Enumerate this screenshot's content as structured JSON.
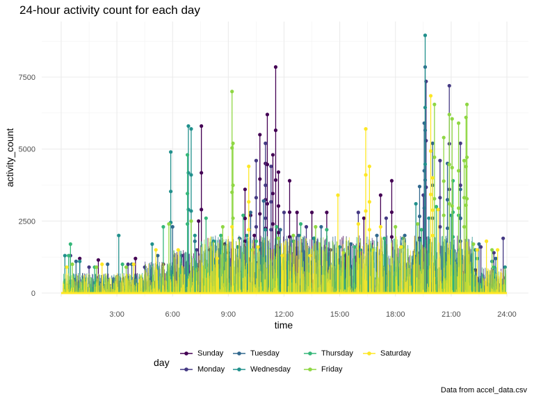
{
  "chart_data": {
    "type": "line",
    "title": "24-hour activity count for each day",
    "xlabel": "time",
    "ylabel": "activity_count",
    "caption": "Data from accel_data.csv",
    "xlim": [
      0,
      24
    ],
    "ylim": [
      0,
      9000
    ],
    "x_ticks": [
      {
        "value": 3,
        "label": "3:00"
      },
      {
        "value": 6,
        "label": "6:00"
      },
      {
        "value": 9,
        "label": "9:00"
      },
      {
        "value": 12,
        "label": "12:00"
      },
      {
        "value": 15,
        "label": "15:00"
      },
      {
        "value": 18,
        "label": "18:00"
      },
      {
        "value": 21,
        "label": "21:00"
      },
      {
        "value": 24,
        "label": "24:00"
      }
    ],
    "y_ticks": [
      {
        "value": 0,
        "label": "0"
      },
      {
        "value": 2500,
        "label": "2500"
      },
      {
        "value": 5000,
        "label": "5000"
      },
      {
        "value": 7500,
        "label": "7500"
      }
    ],
    "grid": true,
    "legend": {
      "title": "day",
      "position": "bottom",
      "entries": [
        "Sunday",
        "Monday",
        "Tuesday",
        "Wednesday",
        "Thursday",
        "Friday",
        "Saturday"
      ]
    },
    "series": [
      {
        "name": "Sunday",
        "color": "#440154",
        "peaks": [
          [
            1.0,
            1200
          ],
          [
            2.0,
            1150
          ],
          [
            4.0,
            1200
          ],
          [
            5.5,
            1000
          ],
          [
            7.4,
            2500
          ],
          [
            7.55,
            5800
          ],
          [
            8.0,
            1500
          ],
          [
            8.8,
            1700
          ],
          [
            9.9,
            3600
          ],
          [
            10.2,
            2700
          ],
          [
            10.4,
            2000
          ],
          [
            10.7,
            5500
          ],
          [
            11.0,
            4500
          ],
          [
            11.1,
            6200
          ],
          [
            11.4,
            4800
          ],
          [
            11.55,
            7850
          ],
          [
            11.7,
            4200
          ],
          [
            12.3,
            3900
          ],
          [
            12.7,
            2800
          ],
          [
            13.5,
            2800
          ],
          [
            14.3,
            2800
          ],
          [
            15.3,
            1300
          ],
          [
            16.3,
            2600
          ],
          [
            17.2,
            3400
          ],
          [
            17.8,
            3900
          ],
          [
            19.3,
            1900
          ],
          [
            22.3,
            800
          ]
        ]
      },
      {
        "name": "Monday",
        "color": "#443983",
        "peaks": [
          [
            0.5,
            1300
          ],
          [
            1.5,
            900
          ],
          [
            3.6,
            1000
          ],
          [
            4.5,
            900
          ],
          [
            6.5,
            1300
          ],
          [
            7.3,
            1500
          ],
          [
            9.0,
            1400
          ],
          [
            10.5,
            4600
          ],
          [
            11.0,
            5200
          ],
          [
            11.3,
            4400
          ],
          [
            12.0,
            2800
          ],
          [
            13.2,
            2300
          ],
          [
            14.5,
            1500
          ],
          [
            16.0,
            2800
          ],
          [
            16.6,
            1500
          ],
          [
            17.5,
            2600
          ],
          [
            19.5,
            3400
          ],
          [
            19.65,
            7350
          ],
          [
            20.0,
            2600
          ],
          [
            20.4,
            4600
          ],
          [
            20.9,
            7200
          ],
          [
            21.5,
            5200
          ],
          [
            22.6,
            1600
          ],
          [
            23.3,
            1400
          ],
          [
            23.8,
            1900
          ]
        ]
      },
      {
        "name": "Tuesday",
        "color": "#31688e",
        "peaks": [
          [
            0.8,
            1100
          ],
          [
            2.5,
            1000
          ],
          [
            3.8,
            1000
          ],
          [
            5.2,
            1300
          ],
          [
            6.0,
            2300
          ],
          [
            7.2,
            1800
          ],
          [
            8.5,
            1500
          ],
          [
            9.6,
            1900
          ],
          [
            10.2,
            2800
          ],
          [
            10.9,
            3200
          ],
          [
            11.8,
            2200
          ],
          [
            12.8,
            2000
          ],
          [
            14.0,
            2300
          ],
          [
            15.6,
            1700
          ],
          [
            17.0,
            2000
          ],
          [
            18.5,
            2000
          ],
          [
            19.3,
            3700
          ],
          [
            19.55,
            5900
          ],
          [
            19.6,
            7850
          ],
          [
            20.0,
            5200
          ],
          [
            20.8,
            4500
          ],
          [
            21.5,
            3600
          ],
          [
            22.5,
            1700
          ],
          [
            23.4,
            1200
          ]
        ]
      },
      {
        "name": "Wednesday",
        "color": "#21908c",
        "peaks": [
          [
            0.2,
            1300
          ],
          [
            1.0,
            1100
          ],
          [
            3.1,
            2000
          ],
          [
            4.9,
            1700
          ],
          [
            5.9,
            4900
          ],
          [
            6.85,
            5800
          ],
          [
            7.0,
            5700
          ],
          [
            7.2,
            2000
          ],
          [
            8.2,
            1800
          ],
          [
            9.5,
            1600
          ],
          [
            10.0,
            2000
          ],
          [
            11.0,
            2200
          ],
          [
            12.5,
            1800
          ],
          [
            13.6,
            1900
          ],
          [
            15.0,
            1600
          ],
          [
            16.1,
            1500
          ],
          [
            18.4,
            1900
          ],
          [
            19.1,
            3100
          ],
          [
            19.6,
            8950
          ],
          [
            19.8,
            2600
          ],
          [
            21.0,
            2700
          ],
          [
            22.3,
            1500
          ],
          [
            23.2,
            1100
          ],
          [
            23.9,
            900
          ]
        ]
      },
      {
        "name": "Thursday",
        "color": "#35b779",
        "peaks": [
          [
            0.4,
            1300
          ],
          [
            0.5,
            1700
          ],
          [
            1.8,
            900
          ],
          [
            3.3,
            1000
          ],
          [
            5.5,
            2300
          ],
          [
            6.8,
            4800
          ],
          [
            7.8,
            2600
          ],
          [
            8.6,
            2000
          ],
          [
            9.8,
            2700
          ],
          [
            10.5,
            1800
          ],
          [
            11.6,
            2300
          ],
          [
            12.9,
            2400
          ],
          [
            14.3,
            2200
          ],
          [
            15.8,
            1600
          ],
          [
            17.4,
            1900
          ],
          [
            18.4,
            1600
          ],
          [
            19.4,
            2200
          ],
          [
            20.2,
            3000
          ],
          [
            21.1,
            3900
          ],
          [
            21.4,
            2700
          ],
          [
            22.4,
            1200
          ],
          [
            23.3,
            900
          ]
        ]
      },
      {
        "name": "Friday",
        "color": "#8fd744",
        "peaks": [
          [
            0.6,
            1000
          ],
          [
            1.9,
            900
          ],
          [
            3.5,
            900
          ],
          [
            5.8,
            2400
          ],
          [
            7.0,
            2500
          ],
          [
            8.7,
            2300
          ],
          [
            9.2,
            7000
          ],
          [
            9.25,
            5200
          ],
          [
            10.3,
            1500
          ],
          [
            11.7,
            1900
          ],
          [
            12.5,
            2000
          ],
          [
            13.7,
            2300
          ],
          [
            15.2,
            1400
          ],
          [
            16.8,
            1500
          ],
          [
            18.0,
            2300
          ],
          [
            19.2,
            2400
          ],
          [
            20.1,
            6550
          ],
          [
            20.6,
            5400
          ],
          [
            20.9,
            6200
          ],
          [
            21.05,
            6050
          ],
          [
            21.4,
            5900
          ],
          [
            21.7,
            4600
          ],
          [
            21.8,
            6100
          ],
          [
            21.85,
            6550
          ],
          [
            22.2,
            1700
          ],
          [
            23.2,
            1500
          ]
        ]
      },
      {
        "name": "Saturday",
        "color": "#fde725",
        "peaks": [
          [
            0.3,
            900
          ],
          [
            2.2,
            1000
          ],
          [
            3.9,
            1000
          ],
          [
            5.1,
            1500
          ],
          [
            6.3,
            1500
          ],
          [
            8.4,
            1200
          ],
          [
            9.2,
            2300
          ],
          [
            10.1,
            4400
          ],
          [
            10.6,
            1600
          ],
          [
            11.9,
            1300
          ],
          [
            13.4,
            1300
          ],
          [
            14.9,
            3400
          ],
          [
            16.0,
            2400
          ],
          [
            16.4,
            5700
          ],
          [
            16.6,
            4400
          ],
          [
            17.2,
            2300
          ],
          [
            18.3,
            1600
          ],
          [
            19.9,
            6850
          ],
          [
            20.0,
            4000
          ],
          [
            20.3,
            2900
          ],
          [
            22.4,
            1500
          ],
          [
            22.9,
            1800
          ],
          [
            23.5,
            1500
          ]
        ]
      }
    ]
  }
}
